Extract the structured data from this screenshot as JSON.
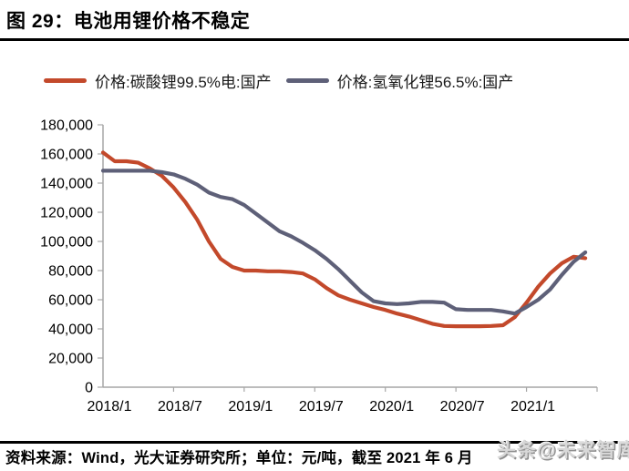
{
  "header": {
    "title": "图 29：电池用锂价格不稳定"
  },
  "footer": {
    "source": "资料来源：Wind，光大证券研究所；单位：元/吨，截至 2021 年 6 月"
  },
  "watermark": {
    "text": "头条@未来智库"
  },
  "chart_data": {
    "type": "line",
    "title": "电池用锂价格不稳定",
    "unit": "元/吨",
    "x": [
      "2018/1",
      "2018/2",
      "2018/3",
      "2018/4",
      "2018/5",
      "2018/6",
      "2018/7",
      "2018/8",
      "2018/9",
      "2018/10",
      "2018/11",
      "2018/12",
      "2019/1",
      "2019/2",
      "2019/3",
      "2019/4",
      "2019/5",
      "2019/6",
      "2019/7",
      "2019/8",
      "2019/9",
      "2019/10",
      "2019/11",
      "2019/12",
      "2020/1",
      "2020/2",
      "2020/3",
      "2020/4",
      "2020/5",
      "2020/6",
      "2020/7",
      "2020/8",
      "2020/9",
      "2020/10",
      "2020/11",
      "2020/12",
      "2021/1",
      "2021/2",
      "2021/3",
      "2021/4",
      "2021/5",
      "2021/6"
    ],
    "series": [
      {
        "name": "价格:碳酸锂99.5%电:国产",
        "color": "#C3492B",
        "values": [
          161000,
          155000,
          155000,
          154000,
          150000,
          145000,
          137000,
          127000,
          115000,
          100000,
          88000,
          82500,
          80000,
          80000,
          79500,
          79500,
          79000,
          78000,
          74000,
          68000,
          63000,
          60000,
          57500,
          55000,
          53000,
          50500,
          48500,
          46000,
          43500,
          42000,
          41800,
          41800,
          41800,
          42000,
          42500,
          48000,
          58000,
          69000,
          78000,
          85000,
          89500,
          88500
        ]
      },
      {
        "name": "价格:氢氧化锂56.5%:国产",
        "color": "#5E6078",
        "values": [
          148500,
          148500,
          148500,
          148500,
          148500,
          147500,
          146000,
          143000,
          139000,
          133500,
          130500,
          129000,
          125000,
          119000,
          113000,
          107000,
          103500,
          99000,
          94000,
          88000,
          81000,
          73000,
          65000,
          59000,
          57500,
          57000,
          57500,
          58500,
          58500,
          58000,
          53500,
          53000,
          53000,
          53000,
          52000,
          50500,
          55000,
          60000,
          67000,
          77000,
          86000,
          92500
        ]
      }
    ],
    "ylim": [
      0,
      180000
    ],
    "y_tick_step": 20000,
    "y_tick_labels": [
      "0",
      "20,000",
      "40,000",
      "60,000",
      "80,000",
      "100,000",
      "120,000",
      "140,000",
      "160,000",
      "180,000"
    ],
    "x_tick_labels": [
      "2018/1",
      "2018/7",
      "2019/1",
      "2019/7",
      "2020/1",
      "2020/7",
      "2021/1"
    ],
    "grid": false,
    "legend_position": "top",
    "axis_color": "#A6A6A6",
    "text_color": "#000000"
  }
}
